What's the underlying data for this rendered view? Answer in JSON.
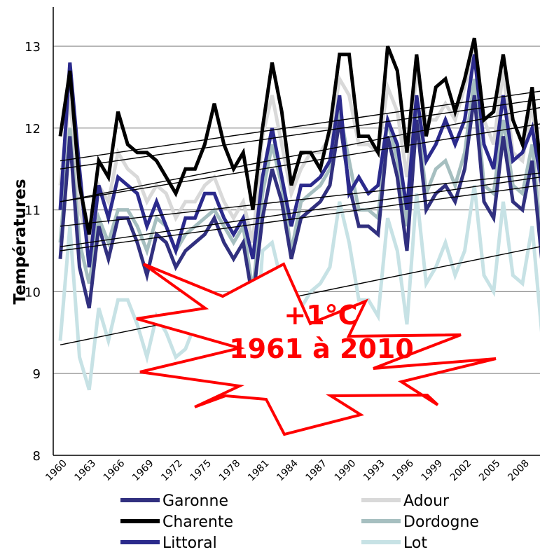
{
  "chart_data": {
    "type": "line",
    "title": "",
    "xlabel": "",
    "ylabel": "Températures",
    "ylim": [
      8,
      13.5
    ],
    "yticks": [
      "8",
      "9",
      "10",
      "11",
      "12",
      "13"
    ],
    "xlim": [
      1960,
      2010
    ],
    "xticks": [
      "1960",
      "1963",
      "1966",
      "1969",
      "1972",
      "1975",
      "1978",
      "1981",
      "1984",
      "1987",
      "1990",
      "1993",
      "1996",
      "1999",
      "2002",
      "2005",
      "2008"
    ],
    "grid": "horizontal",
    "legend_position": "bottom",
    "x": [
      1960,
      1961,
      1962,
      1963,
      1964,
      1965,
      1966,
      1967,
      1968,
      1969,
      1970,
      1971,
      1972,
      1973,
      1974,
      1975,
      1976,
      1977,
      1978,
      1979,
      1980,
      1981,
      1982,
      1983,
      1984,
      1985,
      1986,
      1987,
      1988,
      1989,
      1990,
      1991,
      1992,
      1993,
      1994,
      1995,
      1996,
      1997,
      1998,
      1999,
      2000,
      2001,
      2002,
      2003,
      2004,
      2005,
      2006,
      2007,
      2008,
      2009,
      2010
    ],
    "series": [
      {
        "name": "Garonne",
        "color": "#31307f",
        "values": [
          10.4,
          11.9,
          10.3,
          9.8,
          10.8,
          10.4,
          10.9,
          10.9,
          10.6,
          10.2,
          10.7,
          10.6,
          10.3,
          10.5,
          10.6,
          10.7,
          10.9,
          10.6,
          10.4,
          10.6,
          9.9,
          10.9,
          11.5,
          11.1,
          10.4,
          10.9,
          11.0,
          11.1,
          11.3,
          12.1,
          11.3,
          10.8,
          10.8,
          10.7,
          11.9,
          11.4,
          10.5,
          12.1,
          11.0,
          11.2,
          11.3,
          11.1,
          11.5,
          12.4,
          11.1,
          10.9,
          11.9,
          11.1,
          11.0,
          11.6,
          10.4
        ]
      },
      {
        "name": "Adour",
        "color": "#d9d9d9",
        "values": [
          11.3,
          12.4,
          11.0,
          10.6,
          11.3,
          11.1,
          11.7,
          11.5,
          11.4,
          11.1,
          11.3,
          11.2,
          10.9,
          11.1,
          11.1,
          11.3,
          11.4,
          11.1,
          10.9,
          11.1,
          10.6,
          11.9,
          12.4,
          11.8,
          11.2,
          11.5,
          11.7,
          11.7,
          11.9,
          12.6,
          12.4,
          11.8,
          11.8,
          11.7,
          12.5,
          12.2,
          11.4,
          12.7,
          12.1,
          12.1,
          12.3,
          12.1,
          12.5,
          13.0,
          12.1,
          11.8,
          12.7,
          11.7,
          11.6,
          12.3,
          11.1
        ]
      },
      {
        "name": "Charente",
        "color": "#000000",
        "values": [
          11.9,
          12.7,
          11.3,
          10.7,
          11.6,
          11.4,
          12.2,
          11.8,
          11.7,
          11.7,
          11.6,
          11.4,
          11.2,
          11.5,
          11.5,
          11.8,
          12.3,
          11.8,
          11.5,
          11.7,
          11.0,
          12.0,
          12.8,
          12.2,
          11.3,
          11.7,
          11.7,
          11.5,
          12.0,
          12.9,
          12.9,
          11.9,
          11.9,
          11.7,
          13.0,
          12.7,
          11.7,
          12.9,
          11.9,
          12.5,
          12.6,
          12.2,
          12.6,
          13.1,
          12.1,
          12.2,
          12.9,
          12.1,
          11.8,
          12.5,
          11.4
        ]
      },
      {
        "name": "Dordogne",
        "color": "#a6bfc0",
        "values": [
          10.6,
          12.0,
          10.6,
          10.1,
          10.9,
          10.6,
          11.0,
          11.0,
          10.8,
          10.5,
          10.9,
          10.8,
          10.5,
          10.7,
          10.8,
          10.9,
          11.0,
          10.8,
          10.6,
          10.8,
          10.0,
          11.2,
          11.8,
          11.3,
          10.5,
          11.1,
          11.2,
          11.3,
          11.5,
          12.2,
          11.6,
          11.0,
          11.0,
          10.9,
          12.1,
          11.6,
          10.8,
          12.2,
          11.2,
          11.5,
          11.6,
          11.3,
          11.7,
          12.6,
          11.3,
          11.2,
          12.1,
          11.3,
          11.2,
          11.8,
          10.6
        ]
      },
      {
        "name": "Littoral",
        "color": "#2b2a8c",
        "values": [
          11.0,
          12.8,
          11.5,
          10.3,
          11.3,
          10.9,
          11.4,
          11.3,
          11.2,
          10.8,
          11.1,
          10.8,
          10.5,
          10.9,
          10.9,
          11.2,
          11.2,
          10.9,
          10.7,
          10.9,
          10.4,
          11.4,
          12.0,
          11.4,
          10.8,
          11.3,
          11.3,
          11.4,
          11.6,
          12.4,
          11.2,
          11.4,
          11.2,
          11.3,
          12.1,
          11.8,
          11.0,
          12.4,
          11.6,
          11.8,
          12.1,
          11.8,
          12.1,
          12.9,
          11.8,
          11.5,
          12.4,
          11.6,
          11.7,
          12.0,
          11.3
        ]
      },
      {
        "name": "Lot",
        "color": "#c7e2e5",
        "values": [
          9.4,
          10.8,
          9.2,
          8.8,
          9.8,
          9.4,
          9.9,
          9.9,
          9.6,
          9.2,
          9.7,
          9.5,
          9.2,
          9.3,
          9.6,
          9.6,
          9.8,
          9.6,
          9.4,
          9.6,
          8.7,
          10.5,
          10.6,
          10.1,
          9.3,
          9.8,
          10.0,
          10.1,
          10.3,
          11.1,
          10.6,
          9.9,
          9.9,
          9.7,
          10.9,
          10.5,
          9.6,
          11.2,
          10.1,
          10.3,
          10.6,
          10.2,
          10.5,
          11.3,
          10.2,
          10.0,
          11.1,
          10.2,
          10.1,
          10.8,
          9.5
        ]
      }
    ],
    "trendlines": [
      {
        "from": [
          1960,
          11.6
        ],
        "to": [
          2010,
          12.45
        ]
      },
      {
        "from": [
          1960,
          11.5
        ],
        "to": [
          2010,
          12.35
        ]
      },
      {
        "from": [
          1960,
          11.1
        ],
        "to": [
          2010,
          12.25
        ]
      },
      {
        "from": [
          1960,
          11.1
        ],
        "to": [
          2010,
          12.05
        ]
      },
      {
        "from": [
          1960,
          10.8
        ],
        "to": [
          2010,
          11.45
        ]
      },
      {
        "from": [
          1960,
          10.55
        ],
        "to": [
          2010,
          11.4
        ]
      },
      {
        "from": [
          1960,
          10.5
        ],
        "to": [
          2010,
          11.3
        ]
      },
      {
        "from": [
          1960,
          9.35
        ],
        "to": [
          2010,
          10.55
        ]
      }
    ],
    "annotation": {
      "line1": "+1°C",
      "line2": "1961 à 2010",
      "color": "#ff0000"
    }
  },
  "legend": {
    "items": [
      {
        "label": "Garonne",
        "color": "#31307f"
      },
      {
        "label": "Adour",
        "color": "#d9d9d9"
      },
      {
        "label": "Charente",
        "color": "#000000"
      },
      {
        "label": "Dordogne",
        "color": "#a6bfc0"
      },
      {
        "label": "Littoral",
        "color": "#2b2a8c"
      },
      {
        "label": "Lot",
        "color": "#c7e2e5"
      }
    ]
  }
}
